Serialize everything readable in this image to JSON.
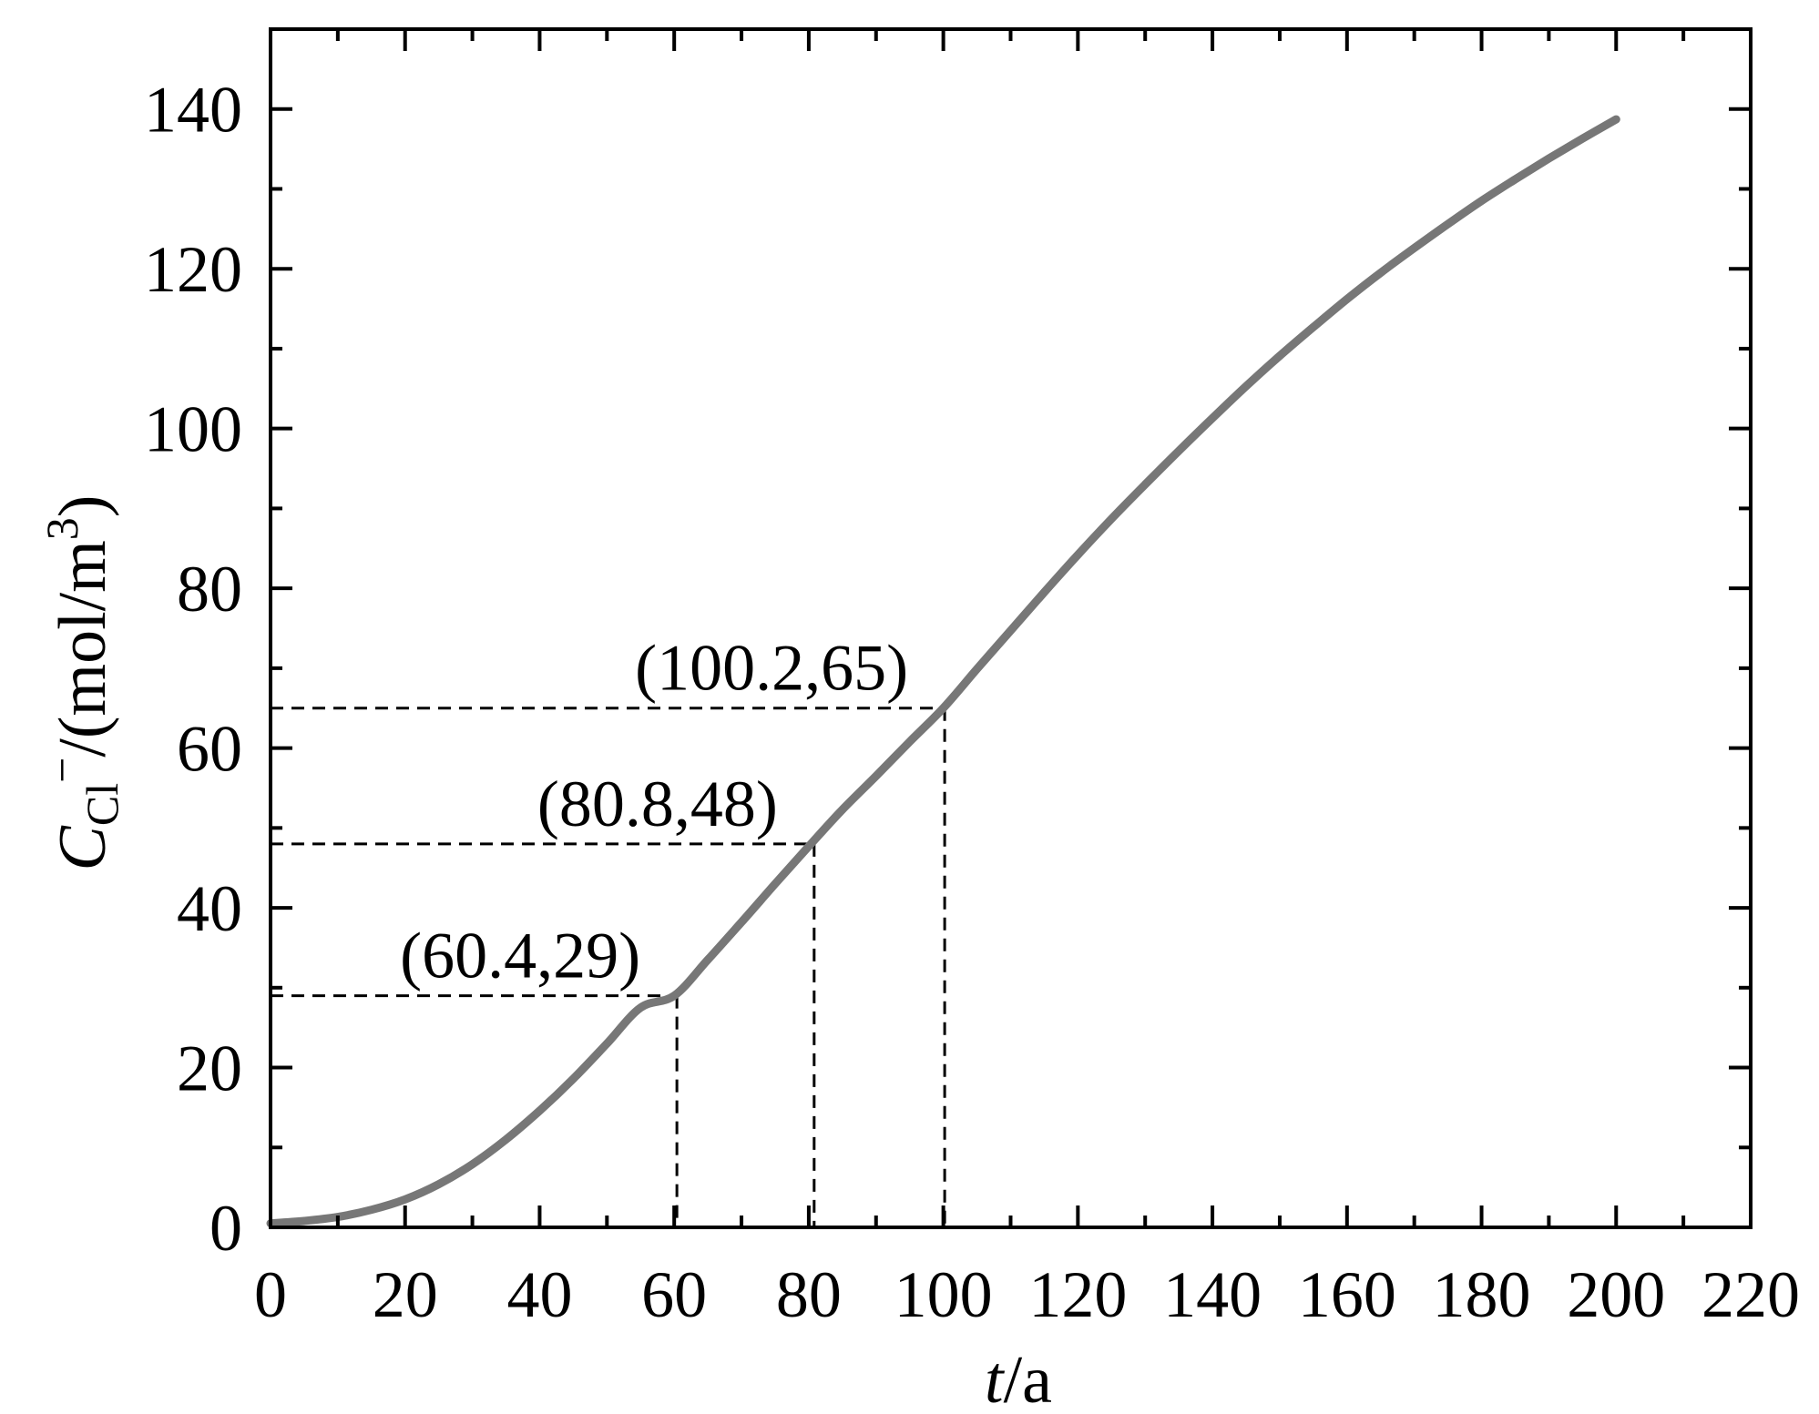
{
  "chart_data": {
    "type": "line",
    "xlabel": {
      "var": "t",
      "unit": "/a"
    },
    "ylabel": {
      "var": "C",
      "sub": "Cl",
      "sup": "−",
      "unit_prefix": "/(mol/m",
      "unit_sup": "3",
      "unit_suffix": ")"
    },
    "xlim": [
      0,
      220
    ],
    "ylim": [
      0,
      150
    ],
    "x_ticks": [
      "0",
      "20",
      "40",
      "60",
      "80",
      "100",
      "120",
      "140",
      "160",
      "180",
      "200",
      "220"
    ],
    "y_ticks": [
      "0",
      "20",
      "40",
      "60",
      "80",
      "100",
      "120",
      "140"
    ],
    "grid": false,
    "line_color": "#777777",
    "series": [
      {
        "x": [
          0,
          5,
          10,
          15,
          20,
          25,
          30,
          35,
          40,
          45,
          50,
          55,
          60,
          65,
          70,
          75,
          80,
          85,
          90,
          95,
          100,
          105,
          110,
          115,
          120,
          125,
          130,
          135,
          140,
          145,
          150,
          155,
          160,
          165,
          170,
          175,
          180,
          185,
          190,
          195,
          200
        ],
        "y": [
          0.5,
          0.8,
          1.3,
          2.2,
          3.5,
          5.4,
          7.9,
          11.0,
          14.6,
          18.6,
          23.0,
          27.5,
          29.0,
          33.5,
          38.2,
          43.0,
          47.7,
          52.3,
          56.5,
          60.8,
          65.0,
          69.9,
          74.7,
          79.5,
          84.2,
          88.7,
          93.0,
          97.2,
          101.3,
          105.3,
          109.1,
          112.7,
          116.2,
          119.5,
          122.6,
          125.6,
          128.5,
          131.2,
          133.8,
          136.3,
          138.7
        ]
      }
    ],
    "annotations": [
      {
        "label": "(60.4,29)",
        "x": 60.4,
        "y": 29
      },
      {
        "label": "(80.8,48)",
        "x": 80.8,
        "y": 48
      },
      {
        "label": "(100.2,65)",
        "x": 100.2,
        "y": 65
      }
    ]
  }
}
